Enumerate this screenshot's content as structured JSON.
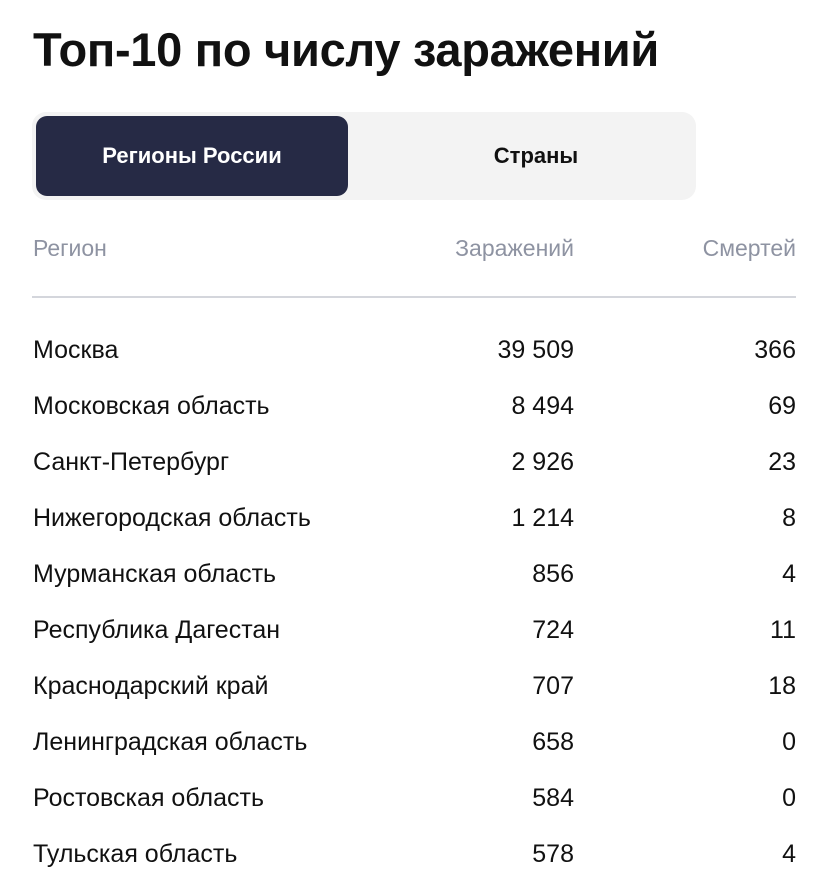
{
  "title": "Топ-10 по числу заражений",
  "tabs": [
    {
      "label": "Регионы России",
      "active": true
    },
    {
      "label": "Страны",
      "active": false
    }
  ],
  "table": {
    "headers": {
      "region": "Регион",
      "infections": "Заражений",
      "deaths": "Смертей"
    },
    "rows": [
      {
        "region": "Москва",
        "infections": "39 509",
        "deaths": "366"
      },
      {
        "region": "Московская область",
        "infections": "8 494",
        "deaths": "69"
      },
      {
        "region": "Санкт-Петербург",
        "infections": "2 926",
        "deaths": "23"
      },
      {
        "region": "Нижегородская область",
        "infections": "1 214",
        "deaths": "8"
      },
      {
        "region": "Мурманская область",
        "infections": "856",
        "deaths": "4"
      },
      {
        "region": "Республика Дагестан",
        "infections": "724",
        "deaths": "11"
      },
      {
        "region": "Краснодарский край",
        "infections": "707",
        "deaths": "18"
      },
      {
        "region": "Ленинградская область",
        "infections": "658",
        "deaths": "0"
      },
      {
        "region": "Ростовская область",
        "infections": "584",
        "deaths": "0"
      },
      {
        "region": "Тульская область",
        "infections": "578",
        "deaths": "4"
      }
    ]
  },
  "colors": {
    "active_tab_bg": "#262a45",
    "tab_track_bg": "#f3f3f3",
    "header_text": "#8e93a2",
    "divider": "#d4d6dc"
  }
}
